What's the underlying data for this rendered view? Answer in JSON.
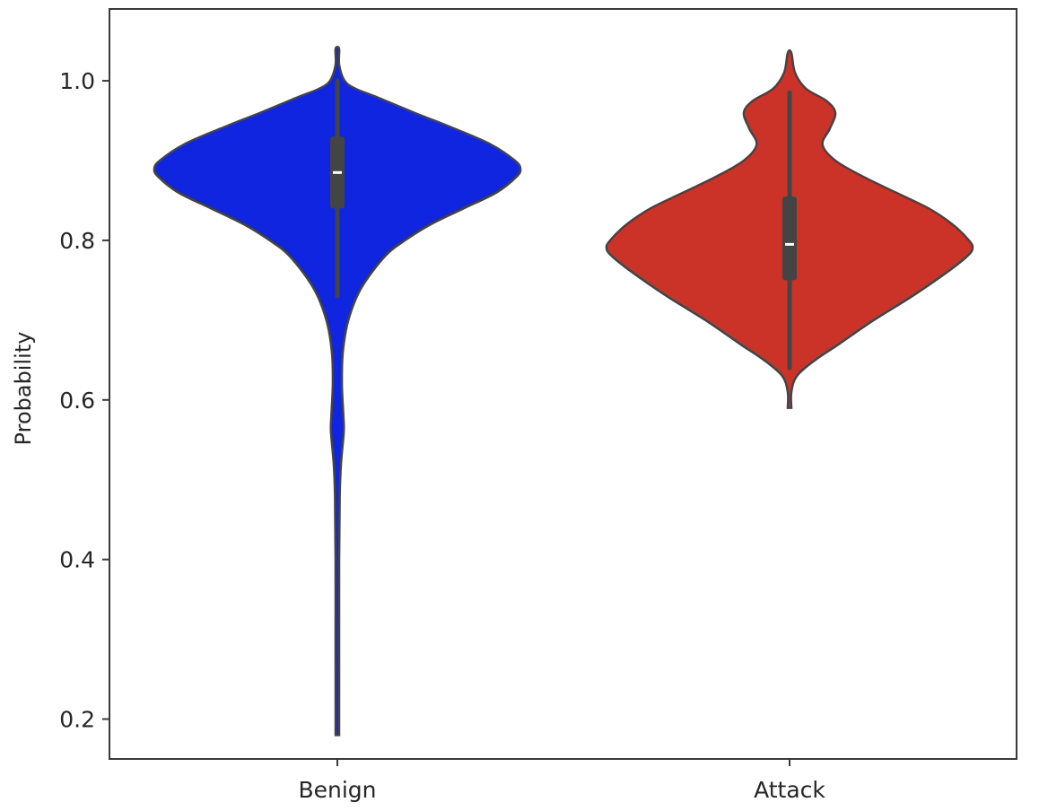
{
  "chart_data": {
    "type": "violin",
    "title": "",
    "xlabel": "",
    "ylabel": "Probability",
    "categories": [
      "Benign",
      "Attack"
    ],
    "ylim": [
      0.15,
      1.09
    ],
    "yticks": [
      "0.2",
      "0.4",
      "0.6",
      "0.8",
      "1.0"
    ],
    "grid": false,
    "violins": [
      {
        "category": "Benign",
        "color": "#0f25e0",
        "min": 0.18,
        "max": 1.04,
        "q1": 0.84,
        "median": 0.885,
        "q3": 0.93,
        "whisker_low": 0.73,
        "whisker_high": 1.0,
        "density": [
          [
            0.18,
            0.0
          ],
          [
            0.22,
            0.005
          ],
          [
            0.3,
            0.01
          ],
          [
            0.4,
            0.01
          ],
          [
            0.48,
            0.013
          ],
          [
            0.52,
            0.02
          ],
          [
            0.56,
            0.035
          ],
          [
            0.58,
            0.033
          ],
          [
            0.62,
            0.025
          ],
          [
            0.66,
            0.03
          ],
          [
            0.7,
            0.06
          ],
          [
            0.74,
            0.13
          ],
          [
            0.78,
            0.26
          ],
          [
            0.8,
            0.37
          ],
          [
            0.82,
            0.51
          ],
          [
            0.84,
            0.69
          ],
          [
            0.86,
            0.87
          ],
          [
            0.88,
            0.98
          ],
          [
            0.89,
            1.0
          ],
          [
            0.9,
            0.97
          ],
          [
            0.92,
            0.84
          ],
          [
            0.94,
            0.64
          ],
          [
            0.96,
            0.42
          ],
          [
            0.98,
            0.21
          ],
          [
            0.99,
            0.1
          ],
          [
            1.0,
            0.04
          ],
          [
            1.02,
            0.01
          ],
          [
            1.04,
            0.0
          ]
        ]
      },
      {
        "category": "Attack",
        "color": "#cc3328",
        "min": 0.59,
        "max": 1.035,
        "q1": 0.75,
        "median": 0.795,
        "q3": 0.855,
        "whisker_low": 0.64,
        "whisker_high": 0.985,
        "density": [
          [
            0.59,
            0.0
          ],
          [
            0.61,
            0.01
          ],
          [
            0.63,
            0.04
          ],
          [
            0.65,
            0.14
          ],
          [
            0.67,
            0.27
          ],
          [
            0.7,
            0.46
          ],
          [
            0.73,
            0.67
          ],
          [
            0.76,
            0.86
          ],
          [
            0.78,
            0.97
          ],
          [
            0.79,
            1.0
          ],
          [
            0.8,
            0.98
          ],
          [
            0.82,
            0.89
          ],
          [
            0.84,
            0.76
          ],
          [
            0.86,
            0.58
          ],
          [
            0.88,
            0.4
          ],
          [
            0.9,
            0.25
          ],
          [
            0.92,
            0.18
          ],
          [
            0.94,
            0.22
          ],
          [
            0.96,
            0.25
          ],
          [
            0.975,
            0.2
          ],
          [
            0.99,
            0.09
          ],
          [
            1.01,
            0.03
          ],
          [
            1.035,
            0.0
          ]
        ]
      }
    ]
  }
}
